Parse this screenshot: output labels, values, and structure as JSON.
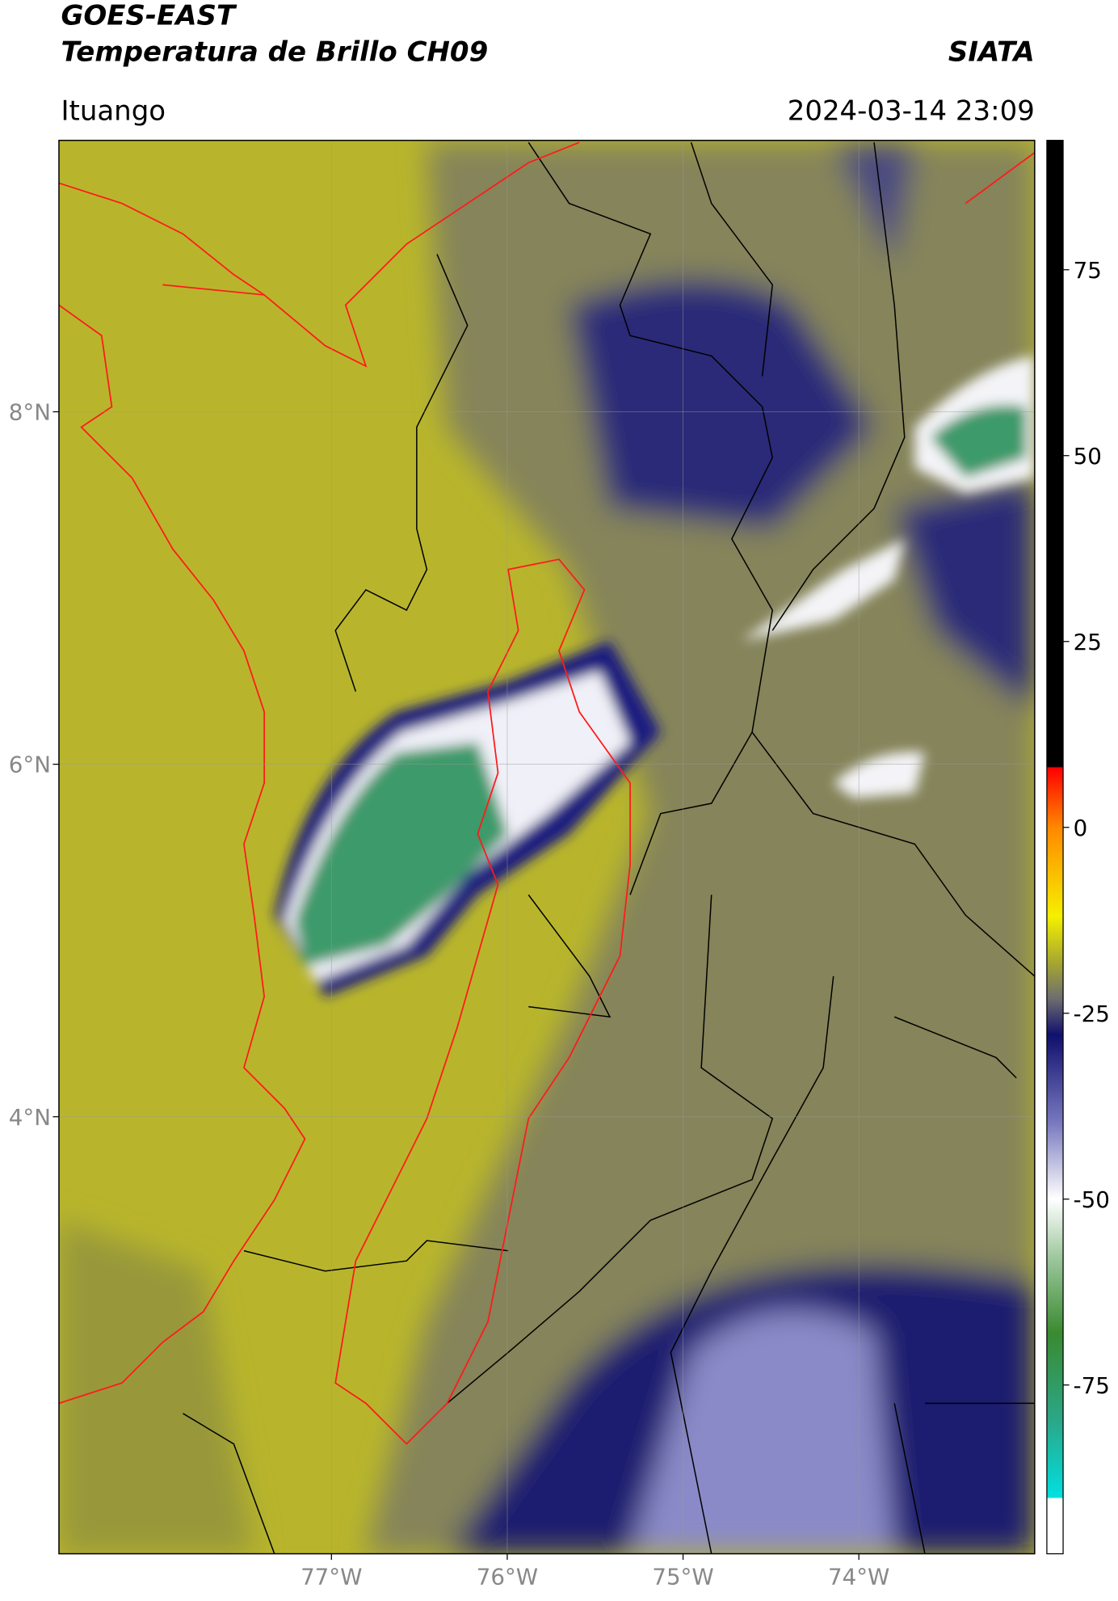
{
  "map": {
    "title": "GOES-EAST",
    "subtitle": "Temperatura de Brillo CH09",
    "source": "SIATA",
    "region": "Ituango",
    "datetime": "2024-03-14 23:09",
    "xlim": [
      -78.55,
      -73.0
    ],
    "ylim": [
      1.52,
      9.54
    ],
    "xticks": [
      {
        "value": -77,
        "label": "77°W"
      },
      {
        "value": -76,
        "label": "76°W"
      },
      {
        "value": -75,
        "label": "75°W"
      },
      {
        "value": -74,
        "label": "74°W"
      }
    ],
    "yticks": [
      {
        "value": 8,
        "label": "8°N"
      },
      {
        "value": 6,
        "label": "6°N"
      },
      {
        "value": 4,
        "label": "4°N"
      }
    ],
    "grid": true,
    "colorbar": {
      "clim": [
        -97.7,
        92.4
      ],
      "ticks": [
        75,
        50,
        25,
        0,
        -25,
        -50,
        -75
      ]
    }
  }
}
